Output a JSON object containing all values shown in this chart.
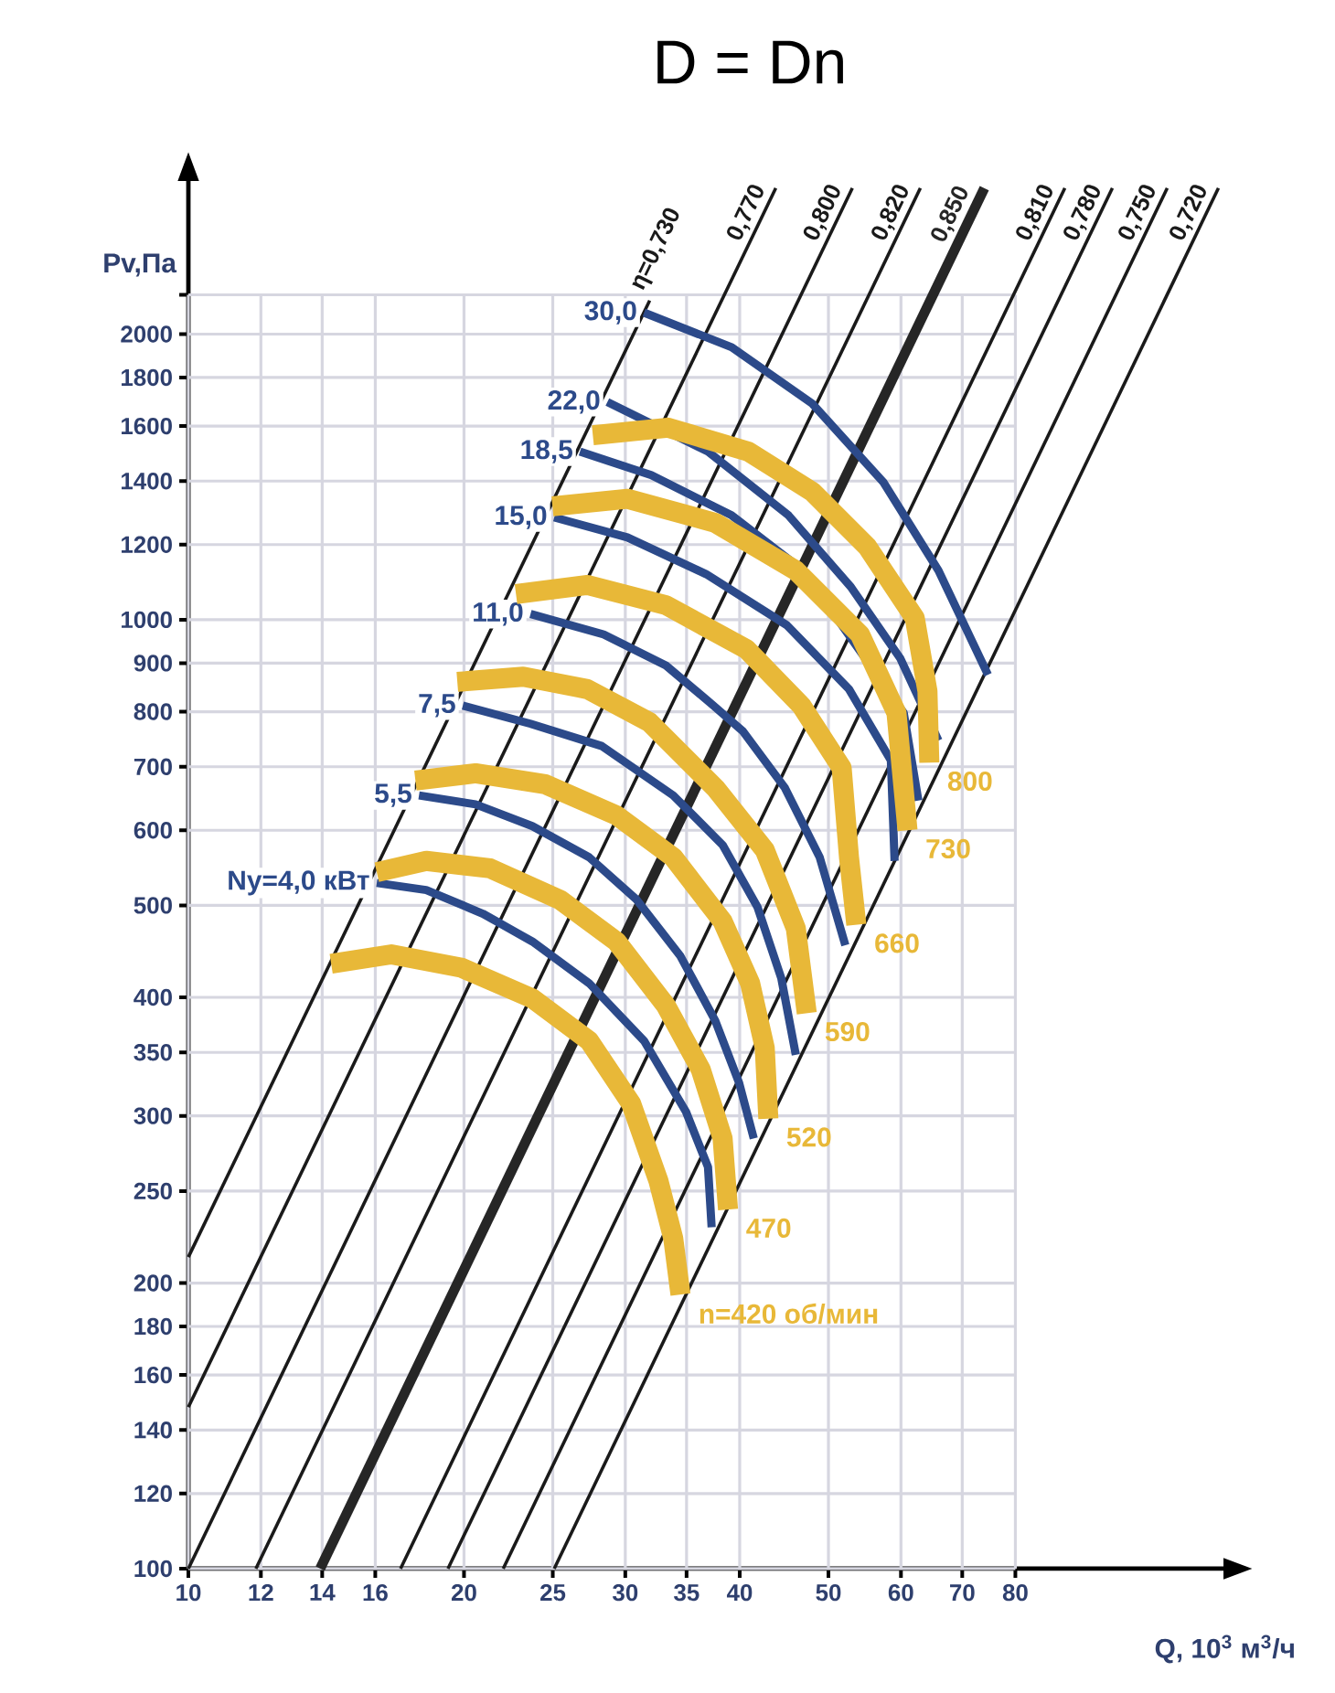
{
  "chart_data": {
    "type": "line",
    "title": "D = Dn",
    "xlabel": "Q, 10$^{3}$ м$^{3}$/ч",
    "ylabel": "Pv,Па",
    "log": "xy",
    "grid": true,
    "xlim": [
      10,
      135
    ],
    "ylim": [
      100,
      2900
    ],
    "xticks": [
      10,
      12,
      14,
      16,
      20,
      25,
      30,
      35,
      40,
      50,
      60,
      70,
      80
    ],
    "yticks": [
      100,
      120,
      140,
      160,
      180,
      200,
      250,
      300,
      350,
      400,
      500,
      600,
      700,
      800,
      900,
      1000,
      1200,
      1400,
      1600,
      1800,
      2000,
      {
        "value": 2200,
        "label": null
      }
    ],
    "series": [
      {
        "name": "η=0,730",
        "color": "#1a1a1a",
        "x": [
          10,
          31.9
        ],
        "values": [
          213,
          2170
        ]
      },
      {
        "name": "0,770",
        "color": "#1a1a1a",
        "x": [
          10,
          43.8
        ],
        "values": [
          148,
          2850
        ]
      },
      {
        "name": "0,800",
        "color": "#1a1a1a",
        "x": [
          10,
          53.1
        ],
        "values": [
          100,
          2850
        ]
      },
      {
        "name": "0,820",
        "color": "#1a1a1a",
        "x": [
          11.85,
          63.0
        ],
        "values": [
          100,
          2850
        ]
      },
      {
        "name": "0,850",
        "color": "#262626",
        "x": [
          13.93,
          74.0
        ],
        "values": [
          100,
          2850
        ]
      },
      {
        "name": "0,810",
        "color": "#1a1a1a",
        "x": [
          17.05,
          90.6
        ],
        "values": [
          100,
          2850
        ]
      },
      {
        "name": "0,780",
        "color": "#1a1a1a",
        "x": [
          19.21,
          102.1
        ],
        "values": [
          100,
          2850
        ]
      },
      {
        "name": "0,750",
        "color": "#1a1a1a",
        "x": [
          22.07,
          117.2
        ],
        "values": [
          100,
          2850
        ]
      },
      {
        "name": "0,720",
        "color": "#1a1a1a",
        "x": [
          25.09,
          133.3
        ],
        "values": [
          100,
          2850
        ]
      },
      {
        "name": "Ny=4,0 кВт",
        "color": "#2c4a8a",
        "x": [
          16.06,
          18.19,
          20.97,
          23.75,
          27.39,
          31.45,
          34.95,
          36.94,
          37.28
        ],
        "values": [
          528,
          519,
          490,
          458,
          414,
          360,
          303,
          265,
          229
        ]
      },
      {
        "name": "5,5",
        "color": "#2c4a8a",
        "x": [
          17.86,
          20.59,
          23.75,
          27.39,
          30.87,
          34.47,
          37.62,
          39.95,
          41.44
        ],
        "values": [
          653,
          639,
          606,
          562,
          507,
          442,
          378,
          325,
          284
        ]
      },
      {
        "name": "7,5",
        "color": "#2c4a8a",
        "x": [
          19.94,
          23.64,
          28.28,
          33.84,
          38.32,
          41.83,
          44.41,
          46.06
        ],
        "values": [
          812,
          777,
          736,
          653,
          579,
          498,
          419,
          348
        ]
      },
      {
        "name": "11,0",
        "color": "#2c4a8a",
        "x": [
          23.64,
          28.41,
          33.23,
          37.45,
          40.32,
          44.82,
          48.91,
          52.17
        ],
        "values": [
          1014,
          965,
          895,
          812,
          763,
          665,
          562,
          454
        ]
      },
      {
        "name": "15,0",
        "color": "#2c4a8a",
        "x": [
          25.09,
          30.16,
          36.77,
          45.03,
          52.65,
          58.5,
          59.05
        ],
        "values": [
          1282,
          1221,
          1117,
          987,
          845,
          711,
          557
        ]
      },
      {
        "name": "18,5",
        "color": "#2c4a8a",
        "x": [
          26.77,
          32.03,
          39.21,
          46.93,
          55.12,
          60.42,
          62.69
        ],
        "values": [
          1504,
          1420,
          1288,
          1127,
          null,
          798,
          645
        ]
      },
      {
        "name": "22,0",
        "color": "#2c4a8a",
        "x": [
          28.68,
          36.94,
          45.23,
          52.89,
          59.88,
          65.94
        ],
        "values": [
          1696,
          1504,
          1288,
          1083,
          911,
          746
        ]
      },
      {
        "name": "30,0",
        "color": "#2c4a8a",
        "x": [
          31.45,
          39.21,
          48.02,
          57.44,
          65.94,
          74.68
        ],
        "values": [
          2107,
          1937,
          1689,
          1395,
          1127,
          875
        ]
      },
      {
        "name": "n=420 об/мин",
        "color": "#e8b838",
        "x": [
          14.32,
          16.66,
          19.85,
          23.75,
          27.39,
          30.45,
          32.62,
          33.84,
          34.47
        ],
        "values": [
          434,
          444,
          430,
          399,
          360,
          309,
          256,
          223,
          194.5
        ]
      },
      {
        "name": "470",
        "color": "#e8b838",
        "x": [
          16.06,
          18.19,
          21.36,
          25.45,
          29.35,
          33.23,
          36.26,
          38.32,
          38.85
        ],
        "values": [
          542,
          557,
          547,
          507,
          458,
          392,
          336,
          284,
          239
        ]
      },
      {
        "name": "520",
        "color": "#e8b838",
        "x": [
          17.7,
          20.59,
          24.52,
          29.35,
          33.84,
          38.32,
          41.06,
          42.6,
          42.99
        ],
        "values": [
          677,
          689,
          671,
          622,
          562,
          481,
          414,
          354,
          298
        ]
      },
      {
        "name": "590",
        "color": "#e8b838",
        "x": [
          19.67,
          23.21,
          27.27,
          31.88,
          37.62,
          42.6,
          46.06,
          47.35
        ],
        "values": [
          860,
          871,
          845,
          780,
          665,
          572,
          473,
          385
        ]
      },
      {
        "name": "660",
        "color": "#e8b838",
        "x": [
          22.79,
          27.27,
          33.23,
          40.69,
          46.7,
          51.69,
          52.65,
          53.63
        ],
        "values": [
          1064,
          1088,
          1036,
          931,
          812,
          698,
          562,
          477
        ]
      },
      {
        "name": "730",
        "color": "#e8b838",
        "x": [
          24.98,
          30.16,
          37.62,
          46.06,
          54.12,
          59.33,
          61.0
        ],
        "values": [
          1317,
          1341,
          1265,
          1127,
          965,
          798,
          600
        ]
      },
      {
        "name": "800",
        "color": "#e8b838",
        "x": [
          27.65,
          33.38,
          40.88,
          48.02,
          55.12,
          62.12,
          64.14,
          64.44
        ],
        "values": [
          1565,
          1594,
          1504,
          1364,
          1194,
          1004,
          841,
          707
        ]
      }
    ]
  }
}
